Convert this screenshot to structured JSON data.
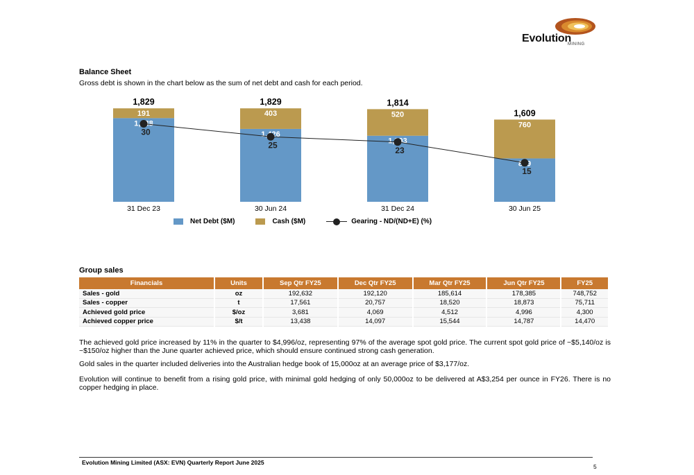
{
  "brand": {
    "name": "Evolution",
    "sub": "MINING"
  },
  "balance_sheet": {
    "title": "Balance Sheet",
    "intro": "Gross debt is shown in the chart below as the sum of net debt and cash for each period."
  },
  "chart_data": {
    "type": "bar",
    "stacked": true,
    "categories": [
      "31 Dec 23",
      "30 Jun 24",
      "31 Dec 24",
      "30 Jun 25"
    ],
    "totals": [
      1829,
      1829,
      1814,
      1609
    ],
    "series": [
      {
        "name": "Net Debt ($M)",
        "type": "bar",
        "color": "#6498c7",
        "values": [
          1638,
          1426,
          1293,
          849
        ]
      },
      {
        "name": "Cash ($M)",
        "type": "bar",
        "color": "#bb9a4f",
        "values": [
          191,
          403,
          520,
          760
        ]
      },
      {
        "name": "Gearing  - ND/(ND+E) (%)",
        "type": "line",
        "color": "#222222",
        "values": [
          30,
          25,
          23,
          15
        ]
      }
    ],
    "ylim": [
      0,
      1900
    ],
    "gearing_ylim": [
      0,
      50
    ],
    "grid": false,
    "legend_position": "bottom"
  },
  "legend": {
    "net_debt": "Net Debt ($M)",
    "cash": "Cash ($M)",
    "gearing": "Gearing  - ND/(ND+E) (%)"
  },
  "group_sales": {
    "title": "Group sales",
    "headers": [
      "Financials",
      "Units",
      "Sep Qtr FY25",
      "Dec Qtr FY25",
      "Mar Qtr FY25",
      "Jun Qtr FY25",
      "FY25"
    ],
    "rows": [
      [
        "Sales - gold",
        "oz",
        "192,632",
        "192,120",
        "185,614",
        "178,385",
        "748,752"
      ],
      [
        "Sales - copper",
        "t",
        "17,561",
        "20,757",
        "18,520",
        "18,873",
        "75,711"
      ],
      [
        "Achieved gold price",
        "$/oz",
        "3,681",
        "4,069",
        "4,512",
        "4,996",
        "4,300"
      ],
      [
        "Achieved copper price",
        "$/t",
        "13,438",
        "14,097",
        "15,544",
        "14,787",
        "14,470"
      ]
    ]
  },
  "paragraphs": [
    "The achieved gold price increased by 11% in the quarter to $4,996/oz, representing 97% of the average spot gold price. The current spot gold price of ~$5,140/oz is ~$150/oz higher than the June quarter achieved price, which should ensure continued strong cash generation.",
    "Gold sales in the quarter included deliveries into the Australian hedge book of 15,000oz at an average price of $3,177/oz.",
    "Evolution will continue to benefit from a rising gold price, with minimal gold hedging of only 50,000oz to be delivered at A$3,254 per ounce in FY26. There is no copper hedging in place."
  ],
  "footer": {
    "text": "Evolution Mining Limited (ASX: EVN) Quarterly Report June 2025",
    "page": "5"
  }
}
